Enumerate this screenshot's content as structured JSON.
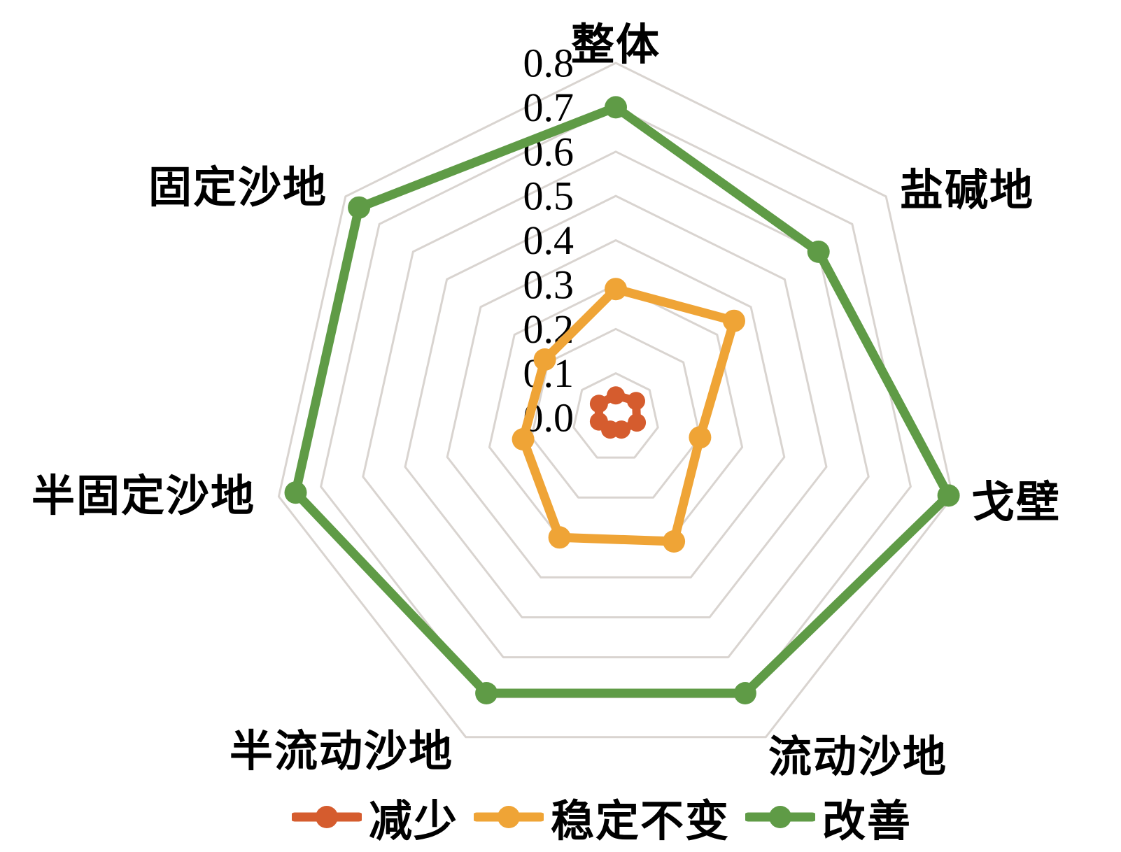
{
  "chart_data": {
    "type": "radar",
    "title": "",
    "categories": [
      "整体",
      "盐碱地",
      "戈壁",
      "流动沙地",
      "半流动沙地",
      "半固定沙地",
      "固定沙地"
    ],
    "category_order": "clockwise-from-top",
    "rlim": [
      0,
      0.8
    ],
    "tick_step": 0.1,
    "tick_labels": [
      "0.8",
      "0.7",
      "0.6",
      "0.5",
      "0.4",
      "0.3",
      "0.2",
      "0.1",
      "0.0"
    ],
    "tick_values": [
      0.8,
      0.7,
      0.6,
      0.5,
      0.4,
      0.3,
      0.2,
      0.1,
      0.0
    ],
    "grid": {
      "rings": true,
      "spokes": false,
      "color": "#D9D4D0"
    },
    "legend_position": "bottom-center",
    "series": [
      {
        "name": "减少",
        "slug": "decrease",
        "color": "#D55C2E",
        "values": [
          0.05,
          0.06,
          0.05,
          0.03,
          0.03,
          0.04,
          0.05
        ]
      },
      {
        "name": "稳定不变",
        "slug": "stable",
        "color": "#EFA436",
        "values": [
          0.29,
          0.35,
          0.2,
          0.31,
          0.3,
          0.22,
          0.21
        ]
      },
      {
        "name": "改善",
        "slug": "improve",
        "color": "#5F9B46",
        "values": [
          0.7,
          0.6,
          0.79,
          0.69,
          0.69,
          0.76,
          0.76
        ]
      }
    ]
  }
}
